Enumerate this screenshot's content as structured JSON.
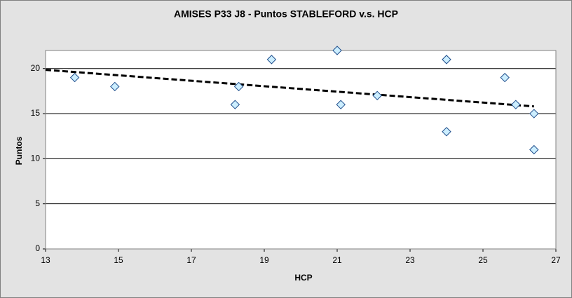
{
  "chart_data": {
    "type": "scatter",
    "title": "AMISES P33 J8 - Puntos STABLEFORD v.s. HCP",
    "x_label": "HCP",
    "y_label": "Puntos",
    "x": [
      13.8,
      14.9,
      18.2,
      18.3,
      19.2,
      21,
      21.1,
      22.1,
      24,
      24,
      25.6,
      25.9,
      26.4,
      26.4
    ],
    "series": [
      {
        "name": "Puntos",
        "color": "#cceeff",
        "values": [
          19,
          18,
          16,
          18,
          21,
          22,
          16,
          17,
          21,
          13,
          19,
          16,
          15,
          11
        ]
      }
    ],
    "trendline": "linear",
    "xlim": [
      13,
      27
    ],
    "xticks": [
      13,
      15,
      17,
      19,
      21,
      23,
      25,
      27
    ],
    "ylim": [
      0,
      22
    ],
    "yticks": [
      0,
      5,
      10,
      15,
      20
    ],
    "grid": true
  }
}
